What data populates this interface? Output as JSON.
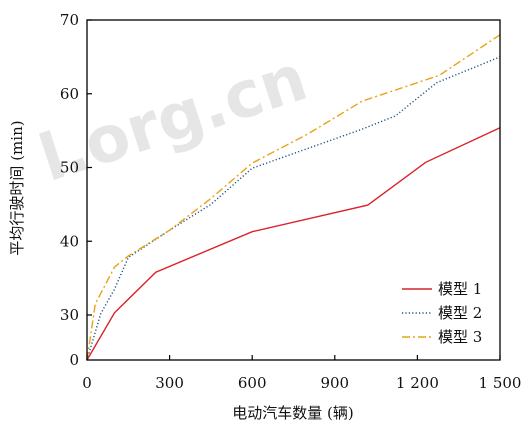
{
  "chart_data": {
    "type": "line",
    "xlabel": "电动汽车数量 (辆)",
    "ylabel": "平均行驶时间 (min)",
    "xlim": [
      0,
      1500
    ],
    "ylim": [
      0,
      70
    ],
    "y_axis_break": {
      "from": 0,
      "to": 30
    },
    "x_ticks": [
      0,
      300,
      600,
      900,
      1200,
      1500
    ],
    "x_tick_labels": [
      "0",
      "300",
      "600",
      "900",
      "1 200",
      "1 500"
    ],
    "y_ticks": [
      0,
      30,
      40,
      50,
      60,
      70
    ],
    "y_tick_labels": [
      "0",
      "30",
      "40",
      "50",
      "60",
      "70"
    ],
    "legend_position": "bottom-right",
    "grid": false,
    "series": [
      {
        "name": "模型 1",
        "color": "#d9232a",
        "dash": "solid",
        "points": [
          [
            0,
            0
          ],
          [
            100,
            30.3
          ],
          [
            250,
            35.8
          ],
          [
            600,
            41.3
          ],
          [
            1020,
            44.9
          ],
          [
            1230,
            50.7
          ],
          [
            1500,
            55.4
          ]
        ]
      },
      {
        "name": "模型 2",
        "color": "#1a4f86",
        "dash": "dotted",
        "points": [
          [
            0,
            0
          ],
          [
            50,
            30.2
          ],
          [
            100,
            33.5
          ],
          [
            150,
            37.8
          ],
          [
            300,
            41.5
          ],
          [
            450,
            45.0
          ],
          [
            600,
            49.9
          ],
          [
            1000,
            55.2
          ],
          [
            1120,
            57.0
          ],
          [
            1270,
            61.5
          ],
          [
            1500,
            65.0
          ]
        ]
      },
      {
        "name": "模型 3",
        "color": "#e8a317",
        "dash": "dashdot",
        "points": [
          [
            0,
            0
          ],
          [
            30,
            31.5
          ],
          [
            100,
            36.5
          ],
          [
            150,
            38.0
          ],
          [
            300,
            41.5
          ],
          [
            450,
            45.8
          ],
          [
            600,
            50.6
          ],
          [
            800,
            54.5
          ],
          [
            1000,
            59.0
          ],
          [
            1280,
            62.5
          ],
          [
            1500,
            68.0
          ]
        ]
      }
    ]
  }
}
